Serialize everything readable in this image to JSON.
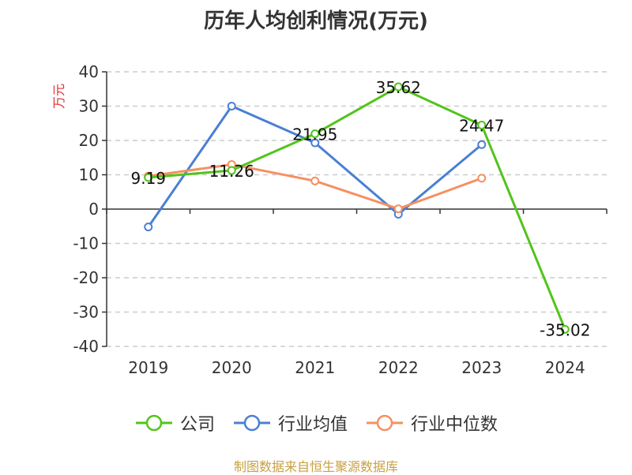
{
  "title": "历年人均创利情况(万元)",
  "footer": "制图数据来自恒生聚源数据库",
  "colors": {
    "footer": "#c8a040",
    "unit": "#e03030",
    "axis": "#333333",
    "grid": "#cccccc"
  },
  "chart_data": {
    "type": "line",
    "title": "历年人均创利情况(万元)",
    "ylabel": "万元",
    "xlabel": "",
    "categories": [
      "2019",
      "2020",
      "2021",
      "2022",
      "2023",
      "2024"
    ],
    "ylim": [
      -40,
      40
    ],
    "yticks": [
      40,
      30,
      20,
      10,
      0,
      -10,
      -20,
      -30,
      -40
    ],
    "grid": true,
    "legend_position": "bottom",
    "series": [
      {
        "name": "公司",
        "color": "#52c41a",
        "values": [
          9.19,
          11.26,
          21.95,
          35.62,
          24.47,
          -35.02
        ],
        "labels": [
          "9.19",
          "11.26",
          "21.95",
          "35.62",
          "24.47",
          "-35.02"
        ]
      },
      {
        "name": "行业均值",
        "color": "#4a7fd4",
        "values": [
          -5.2,
          30.0,
          19.3,
          -1.5,
          18.8,
          null
        ],
        "labels": []
      },
      {
        "name": "行业中位数",
        "color": "#f59062",
        "values": [
          9.6,
          13.0,
          8.2,
          0.1,
          9.0,
          null
        ],
        "labels": []
      }
    ]
  }
}
